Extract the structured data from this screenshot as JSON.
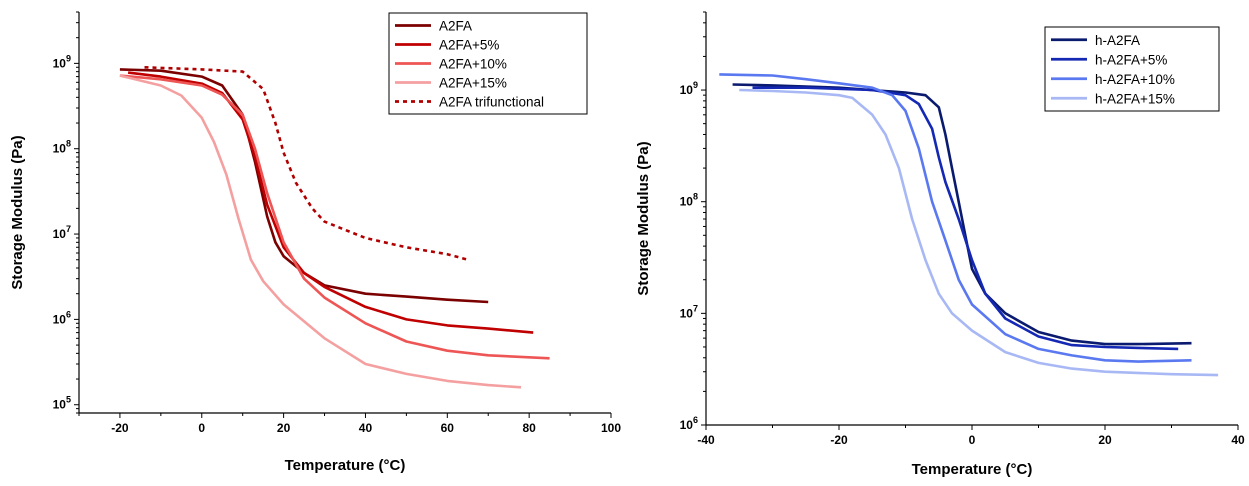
{
  "chart_data": [
    {
      "type": "line",
      "title": "",
      "xlabel": "Temperature (°C)",
      "ylabel": "Storage Modulus (Pa)",
      "xlim": [
        -30,
        100
      ],
      "ylim": [
        80000,
        4000000000
      ],
      "yscale": "log",
      "x_ticks": [
        -20,
        0,
        20,
        40,
        60,
        80,
        100
      ],
      "x_tick_labels": [
        "-20",
        "0",
        "20",
        "40",
        "60",
        "80",
        "100"
      ],
      "y_ticks": [
        100000,
        1000000,
        10000000,
        100000000,
        1000000000
      ],
      "y_tick_labels": [
        {
          "base": "10",
          "exp": "5"
        },
        {
          "base": "10",
          "exp": "6"
        },
        {
          "base": "10",
          "exp": "7"
        },
        {
          "base": "10",
          "exp": "8"
        },
        {
          "base": "10",
          "exp": "9"
        }
      ],
      "grid": false,
      "legend_position": "top-right",
      "series": [
        {
          "name": "A2FA",
          "color": "#7b0000",
          "dash": "solid",
          "points": [
            [
              -20,
              850000000
            ],
            [
              -10,
              820000000
            ],
            [
              0,
              700000000
            ],
            [
              5,
              550000000
            ],
            [
              10,
              250000000
            ],
            [
              13,
              70000000
            ],
            [
              16,
              16000000
            ],
            [
              18,
              8000000
            ],
            [
              20,
              5500000
            ],
            [
              25,
              3500000
            ],
            [
              30,
              2500000
            ],
            [
              40,
              2000000
            ],
            [
              50,
              1850000
            ],
            [
              60,
              1700000
            ],
            [
              70,
              1600000
            ]
          ]
        },
        {
          "name": "A2FA+5%",
          "color": "#c00000",
          "dash": "solid",
          "points": [
            [
              -18,
              780000000
            ],
            [
              -10,
              700000000
            ],
            [
              0,
              580000000
            ],
            [
              5,
              450000000
            ],
            [
              10,
              220000000
            ],
            [
              13,
              80000000
            ],
            [
              16,
              22000000
            ],
            [
              20,
              7000000
            ],
            [
              25,
              3500000
            ],
            [
              30,
              2400000
            ],
            [
              40,
              1400000
            ],
            [
              50,
              1000000
            ],
            [
              60,
              850000
            ],
            [
              70,
              780000
            ],
            [
              81,
              700000
            ]
          ]
        },
        {
          "name": "A2FA+10%",
          "color": "#ee5555",
          "dash": "solid",
          "points": [
            [
              -20,
              720000000
            ],
            [
              -10,
              650000000
            ],
            [
              0,
              550000000
            ],
            [
              5,
              430000000
            ],
            [
              10,
              250000000
            ],
            [
              13,
              100000000
            ],
            [
              16,
              30000000
            ],
            [
              20,
              8000000
            ],
            [
              25,
              3000000
            ],
            [
              30,
              1800000
            ],
            [
              40,
              900000
            ],
            [
              50,
              550000
            ],
            [
              60,
              430000
            ],
            [
              70,
              380000
            ],
            [
              85,
              350000
            ]
          ]
        },
        {
          "name": "A2FA+15%",
          "color": "#f5a0a0",
          "dash": "solid",
          "points": [
            [
              -20,
              720000000
            ],
            [
              -10,
              550000000
            ],
            [
              -5,
              420000000
            ],
            [
              0,
              230000000
            ],
            [
              3,
              120000000
            ],
            [
              6,
              50000000
            ],
            [
              9,
              15000000
            ],
            [
              12,
              5000000
            ],
            [
              15,
              2800000
            ],
            [
              20,
              1500000
            ],
            [
              30,
              600000
            ],
            [
              40,
              300000
            ],
            [
              50,
              230000
            ],
            [
              60,
              190000
            ],
            [
              70,
              170000
            ],
            [
              78,
              160000
            ]
          ]
        },
        {
          "name": "A2FA trifunctional",
          "color": "#b00000",
          "dash": "dotted",
          "points": [
            [
              -14,
              900000000
            ],
            [
              0,
              850000000
            ],
            [
              10,
              800000000
            ],
            [
              15,
              500000000
            ],
            [
              18,
              200000000
            ],
            [
              20,
              90000000
            ],
            [
              23,
              40000000
            ],
            [
              27,
              20000000
            ],
            [
              30,
              14000000
            ],
            [
              40,
              9000000
            ],
            [
              50,
              7000000
            ],
            [
              60,
              5800000
            ],
            [
              65,
              5000000
            ]
          ]
        }
      ]
    },
    {
      "type": "line",
      "title": "",
      "xlabel": "Temperature (°C)",
      "ylabel": "Storage Modulus (Pa)",
      "xlim": [
        -40,
        40
      ],
      "ylim": [
        1000000,
        5000000000
      ],
      "yscale": "log",
      "x_ticks": [
        -40,
        -20,
        0,
        20,
        40
      ],
      "x_tick_labels": [
        "-40",
        "-20",
        "0",
        "20",
        "40"
      ],
      "y_ticks": [
        1000000,
        10000000,
        100000000,
        1000000000
      ],
      "y_tick_labels": [
        {
          "base": "10",
          "exp": "6"
        },
        {
          "base": "10",
          "exp": "7"
        },
        {
          "base": "10",
          "exp": "8"
        },
        {
          "base": "10",
          "exp": "9"
        }
      ],
      "grid": false,
      "legend_position": "top-right",
      "series": [
        {
          "name": "h-A2FA",
          "color": "#0a1a6e",
          "dash": "solid",
          "points": [
            [
              -36,
              1120000000
            ],
            [
              -30,
              1100000000
            ],
            [
              -20,
              1050000000
            ],
            [
              -10,
              950000000
            ],
            [
              -7,
              900000000
            ],
            [
              -5,
              700000000
            ],
            [
              -4,
              400000000
            ],
            [
              -3,
              200000000
            ],
            [
              -2,
              100000000
            ],
            [
              -1,
              50000000
            ],
            [
              0,
              25000000
            ],
            [
              2,
              15000000
            ],
            [
              5,
              10000000
            ],
            [
              10,
              6800000
            ],
            [
              15,
              5700000
            ],
            [
              20,
              5300000
            ],
            [
              25,
              5300000
            ],
            [
              33,
              5400000
            ]
          ]
        },
        {
          "name": "h-A2FA+5%",
          "color": "#1428b4",
          "dash": "solid",
          "points": [
            [
              -33,
              1050000000
            ],
            [
              -25,
              1050000000
            ],
            [
              -15,
              1000000000
            ],
            [
              -10,
              900000000
            ],
            [
              -8,
              750000000
            ],
            [
              -6,
              450000000
            ],
            [
              -5,
              250000000
            ],
            [
              -4,
              150000000
            ],
            [
              -2,
              70000000
            ],
            [
              0,
              30000000
            ],
            [
              2,
              15000000
            ],
            [
              5,
              9000000
            ],
            [
              10,
              6200000
            ],
            [
              15,
              5200000
            ],
            [
              20,
              5000000
            ],
            [
              25,
              4900000
            ],
            [
              31,
              4800000
            ]
          ]
        },
        {
          "name": "h-A2FA+10%",
          "color": "#5a78f0",
          "dash": "solid",
          "points": [
            [
              -38,
              1380000000
            ],
            [
              -30,
              1350000000
            ],
            [
              -25,
              1250000000
            ],
            [
              -20,
              1150000000
            ],
            [
              -15,
              1050000000
            ],
            [
              -12,
              900000000
            ],
            [
              -10,
              650000000
            ],
            [
              -8,
              300000000
            ],
            [
              -6,
              100000000
            ],
            [
              -4,
              45000000
            ],
            [
              -2,
              20000000
            ],
            [
              0,
              12000000
            ],
            [
              5,
              6500000
            ],
            [
              10,
              4800000
            ],
            [
              15,
              4200000
            ],
            [
              20,
              3800000
            ],
            [
              25,
              3700000
            ],
            [
              33,
              3800000
            ]
          ]
        },
        {
          "name": "h-A2FA+15%",
          "color": "#a8b8f5",
          "dash": "solid",
          "points": [
            [
              -35,
              1000000000
            ],
            [
              -30,
              980000000
            ],
            [
              -25,
              950000000
            ],
            [
              -20,
              900000000
            ],
            [
              -18,
              850000000
            ],
            [
              -15,
              600000000
            ],
            [
              -13,
              400000000
            ],
            [
              -11,
              200000000
            ],
            [
              -9,
              70000000
            ],
            [
              -7,
              30000000
            ],
            [
              -5,
              15000000
            ],
            [
              -3,
              10000000
            ],
            [
              0,
              7000000
            ],
            [
              5,
              4500000
            ],
            [
              10,
              3600000
            ],
            [
              15,
              3200000
            ],
            [
              20,
              3000000
            ],
            [
              30,
              2850000
            ],
            [
              37,
              2800000
            ]
          ]
        }
      ]
    }
  ]
}
